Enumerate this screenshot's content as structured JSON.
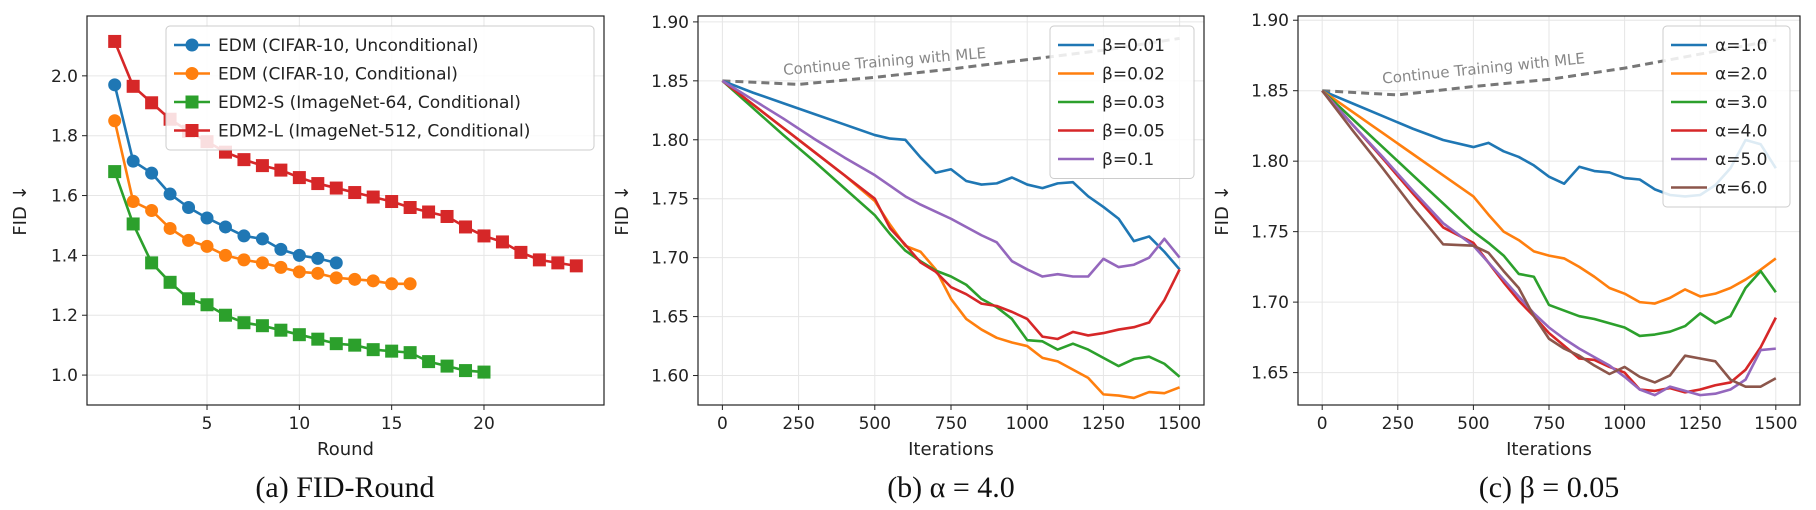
{
  "colors": {
    "blue": "#1f77b4",
    "orange": "#ff7f0e",
    "green": "#2ca02c",
    "red": "#d62728",
    "purple": "#9467bd",
    "brown": "#8c564b",
    "gray": "#777777"
  },
  "chart_data": [
    {
      "type": "line",
      "caption": "(a) FID-Round",
      "xlabel": "Round",
      "ylabel": "FID ↓",
      "xlim": [
        -1.5,
        26.5
      ],
      "ylim": [
        0.9,
        2.2
      ],
      "xticks": [
        5,
        10,
        15,
        20
      ],
      "yticks": [
        1.0,
        1.2,
        1.4,
        1.6,
        1.8,
        2.0
      ],
      "grid": true,
      "legend_position": "top-right",
      "series": [
        {
          "name": "EDM (CIFAR-10, Unconditional)",
          "color": "blue",
          "marker": "circle",
          "x": [
            0,
            1,
            2,
            3,
            4,
            5,
            6,
            7,
            8,
            9,
            10,
            11,
            12
          ],
          "y": [
            1.97,
            1.715,
            1.675,
            1.605,
            1.56,
            1.525,
            1.495,
            1.465,
            1.455,
            1.42,
            1.4,
            1.39,
            1.375
          ]
        },
        {
          "name": "EDM (CIFAR-10, Conditional)",
          "color": "orange",
          "marker": "circle",
          "x": [
            0,
            1,
            2,
            3,
            4,
            5,
            6,
            7,
            8,
            9,
            10,
            11,
            12,
            13,
            14,
            15,
            16
          ],
          "y": [
            1.85,
            1.58,
            1.55,
            1.49,
            1.45,
            1.43,
            1.4,
            1.385,
            1.375,
            1.36,
            1.345,
            1.34,
            1.325,
            1.32,
            1.315,
            1.305,
            1.305
          ]
        },
        {
          "name": "EDM2-S (ImageNet-64, Conditional)",
          "color": "green",
          "marker": "square",
          "x": [
            0,
            1,
            2,
            3,
            4,
            5,
            6,
            7,
            8,
            9,
            10,
            11,
            12,
            13,
            14,
            15,
            16,
            17,
            18,
            19,
            20
          ],
          "y": [
            1.68,
            1.505,
            1.375,
            1.31,
            1.255,
            1.235,
            1.2,
            1.175,
            1.165,
            1.15,
            1.135,
            1.12,
            1.105,
            1.1,
            1.085,
            1.08,
            1.075,
            1.045,
            1.03,
            1.015,
            1.01
          ]
        },
        {
          "name": "EDM2-L (ImageNet-512, Conditional)",
          "color": "red",
          "marker": "square",
          "x": [
            0,
            1,
            2,
            3,
            4,
            5,
            6,
            7,
            8,
            9,
            10,
            11,
            12,
            13,
            14,
            15,
            16,
            17,
            18,
            19,
            20,
            21,
            22,
            23,
            24,
            25
          ],
          "y": [
            2.115,
            1.965,
            1.91,
            1.855,
            1.815,
            1.78,
            1.745,
            1.72,
            1.7,
            1.685,
            1.66,
            1.64,
            1.625,
            1.61,
            1.595,
            1.58,
            1.56,
            1.545,
            1.53,
            1.495,
            1.465,
            1.445,
            1.41,
            1.385,
            1.375,
            1.365
          ]
        }
      ]
    },
    {
      "type": "line",
      "caption": "(b) α = 4.0",
      "xlabel": "Iterations",
      "ylabel": "FID ↓",
      "xlim": [
        -80,
        1580
      ],
      "ylim": [
        1.575,
        1.905
      ],
      "xticks": [
        0,
        250,
        500,
        750,
        1000,
        1250,
        1500
      ],
      "yticks": [
        1.6,
        1.65,
        1.7,
        1.75,
        1.8,
        1.85,
        1.9
      ],
      "grid": true,
      "legend_position": "top-right",
      "annotation": {
        "text": "Continue Training with MLE",
        "x": [
          0,
          250,
          500,
          750,
          1000,
          1250,
          1500
        ],
        "y": [
          1.85,
          1.847,
          1.853,
          1.86,
          1.868,
          1.876,
          1.886
        ]
      },
      "series": [
        {
          "name": "β=0.01",
          "color": "blue",
          "x": [
            0,
            100,
            200,
            300,
            400,
            500,
            550,
            600,
            650,
            700,
            750,
            800,
            850,
            900,
            950,
            1000,
            1050,
            1100,
            1150,
            1200,
            1250,
            1300,
            1350,
            1400,
            1450,
            1500
          ],
          "y": [
            1.85,
            1.84,
            1.831,
            1.822,
            1.813,
            1.804,
            1.801,
            1.8,
            1.785,
            1.772,
            1.775,
            1.765,
            1.762,
            1.763,
            1.768,
            1.762,
            1.759,
            1.763,
            1.764,
            1.752,
            1.743,
            1.733,
            1.714,
            1.718,
            1.705,
            1.69
          ]
        },
        {
          "name": "β=0.02",
          "color": "orange",
          "x": [
            0,
            100,
            200,
            300,
            400,
            500,
            550,
            600,
            650,
            700,
            750,
            800,
            850,
            900,
            950,
            1000,
            1050,
            1100,
            1150,
            1200,
            1250,
            1300,
            1350,
            1400,
            1450,
            1500
          ],
          "y": [
            1.85,
            1.83,
            1.81,
            1.79,
            1.77,
            1.748,
            1.728,
            1.71,
            1.705,
            1.69,
            1.665,
            1.648,
            1.639,
            1.632,
            1.628,
            1.625,
            1.615,
            1.612,
            1.605,
            1.598,
            1.584,
            1.583,
            1.581,
            1.586,
            1.585,
            1.59
          ]
        },
        {
          "name": "β=0.03",
          "color": "green",
          "x": [
            0,
            100,
            200,
            300,
            400,
            500,
            550,
            600,
            650,
            700,
            750,
            800,
            850,
            900,
            950,
            1000,
            1050,
            1100,
            1150,
            1200,
            1250,
            1300,
            1350,
            1400,
            1450,
            1500
          ],
          "y": [
            1.85,
            1.827,
            1.804,
            1.782,
            1.759,
            1.736,
            1.72,
            1.706,
            1.697,
            1.689,
            1.684,
            1.677,
            1.665,
            1.658,
            1.648,
            1.63,
            1.629,
            1.622,
            1.627,
            1.622,
            1.615,
            1.608,
            1.614,
            1.616,
            1.61,
            1.599
          ]
        },
        {
          "name": "β=0.05",
          "color": "red",
          "x": [
            0,
            100,
            200,
            300,
            400,
            500,
            550,
            600,
            650,
            700,
            750,
            800,
            850,
            900,
            950,
            1000,
            1050,
            1100,
            1150,
            1200,
            1250,
            1300,
            1350,
            1400,
            1450,
            1500
          ],
          "y": [
            1.85,
            1.83,
            1.81,
            1.79,
            1.77,
            1.75,
            1.725,
            1.711,
            1.696,
            1.688,
            1.675,
            1.669,
            1.661,
            1.659,
            1.654,
            1.648,
            1.633,
            1.631,
            1.637,
            1.634,
            1.636,
            1.639,
            1.641,
            1.645,
            1.664,
            1.69
          ]
        },
        {
          "name": "β=0.1",
          "color": "purple",
          "x": [
            0,
            100,
            200,
            300,
            400,
            500,
            550,
            600,
            650,
            700,
            750,
            800,
            850,
            900,
            950,
            1000,
            1050,
            1100,
            1150,
            1200,
            1250,
            1300,
            1350,
            1400,
            1450,
            1500
          ],
          "y": [
            1.85,
            1.834,
            1.818,
            1.801,
            1.785,
            1.77,
            1.761,
            1.752,
            1.745,
            1.739,
            1.733,
            1.726,
            1.719,
            1.713,
            1.697,
            1.69,
            1.684,
            1.686,
            1.684,
            1.684,
            1.699,
            1.692,
            1.694,
            1.7,
            1.716,
            1.7
          ]
        }
      ]
    },
    {
      "type": "line",
      "caption": "(c) β = 0.05",
      "xlabel": "Iterations",
      "ylabel": "FID ↓",
      "xlim": [
        -80,
        1580
      ],
      "ylim": [
        1.627,
        1.903
      ],
      "xticks": [
        0,
        250,
        500,
        750,
        1000,
        1250,
        1500
      ],
      "yticks": [
        1.65,
        1.7,
        1.75,
        1.8,
        1.85,
        1.9
      ],
      "grid": true,
      "legend_position": "top-right",
      "annotation": {
        "text": "Continue Training with MLE",
        "x": [
          0,
          250,
          500,
          750,
          1000,
          1250,
          1500
        ],
        "y": [
          1.85,
          1.847,
          1.853,
          1.858,
          1.866,
          1.876,
          1.886
        ]
      },
      "series": [
        {
          "name": "α=1.0",
          "color": "blue",
          "x": [
            0,
            100,
            200,
            300,
            400,
            500,
            550,
            600,
            650,
            700,
            750,
            800,
            850,
            900,
            950,
            1000,
            1050,
            1100,
            1150,
            1200,
            1250,
            1300,
            1350,
            1400,
            1450,
            1500
          ],
          "y": [
            1.85,
            1.841,
            1.832,
            1.823,
            1.815,
            1.81,
            1.813,
            1.807,
            1.803,
            1.797,
            1.789,
            1.784,
            1.796,
            1.793,
            1.792,
            1.788,
            1.787,
            1.78,
            1.776,
            1.775,
            1.776,
            1.783,
            1.795,
            1.815,
            1.812,
            1.795
          ]
        },
        {
          "name": "α=2.0",
          "color": "orange",
          "x": [
            0,
            100,
            200,
            300,
            400,
            500,
            550,
            600,
            650,
            700,
            750,
            800,
            850,
            900,
            950,
            1000,
            1050,
            1100,
            1150,
            1200,
            1250,
            1300,
            1350,
            1400,
            1450,
            1500
          ],
          "y": [
            1.85,
            1.835,
            1.82,
            1.805,
            1.79,
            1.775,
            1.762,
            1.75,
            1.744,
            1.736,
            1.733,
            1.731,
            1.725,
            1.718,
            1.71,
            1.706,
            1.7,
            1.699,
            1.703,
            1.709,
            1.704,
            1.706,
            1.71,
            1.716,
            1.723,
            1.731
          ]
        },
        {
          "name": "α=3.0",
          "color": "green",
          "x": [
            0,
            100,
            200,
            300,
            400,
            500,
            550,
            600,
            650,
            700,
            750,
            800,
            850,
            900,
            950,
            1000,
            1050,
            1100,
            1150,
            1200,
            1250,
            1300,
            1350,
            1400,
            1450,
            1500
          ],
          "y": [
            1.85,
            1.83,
            1.81,
            1.79,
            1.77,
            1.75,
            1.742,
            1.733,
            1.72,
            1.718,
            1.698,
            1.694,
            1.69,
            1.688,
            1.685,
            1.682,
            1.676,
            1.677,
            1.679,
            1.683,
            1.692,
            1.685,
            1.69,
            1.71,
            1.722,
            1.707
          ]
        },
        {
          "name": "α=4.0",
          "color": "red",
          "x": [
            0,
            100,
            200,
            300,
            400,
            500,
            550,
            600,
            650,
            700,
            750,
            800,
            850,
            900,
            950,
            1000,
            1050,
            1100,
            1150,
            1200,
            1250,
            1300,
            1350,
            1400,
            1450,
            1500
          ],
          "y": [
            1.85,
            1.826,
            1.802,
            1.777,
            1.753,
            1.742,
            1.728,
            1.714,
            1.701,
            1.69,
            1.678,
            1.669,
            1.66,
            1.659,
            1.654,
            1.65,
            1.638,
            1.637,
            1.639,
            1.636,
            1.638,
            1.641,
            1.643,
            1.652,
            1.668,
            1.689
          ]
        },
        {
          "name": "α=5.0",
          "color": "purple",
          "x": [
            0,
            100,
            200,
            300,
            400,
            500,
            550,
            600,
            650,
            700,
            750,
            800,
            850,
            900,
            950,
            1000,
            1050,
            1100,
            1150,
            1200,
            1250,
            1300,
            1350,
            1400,
            1450,
            1500
          ],
          "y": [
            1.85,
            1.826,
            1.803,
            1.779,
            1.756,
            1.74,
            1.728,
            1.716,
            1.704,
            1.692,
            1.682,
            1.674,
            1.667,
            1.661,
            1.655,
            1.647,
            1.638,
            1.634,
            1.64,
            1.637,
            1.634,
            1.635,
            1.638,
            1.645,
            1.666,
            1.667
          ]
        },
        {
          "name": "α=6.0",
          "color": "brown",
          "x": [
            0,
            100,
            200,
            300,
            400,
            500,
            550,
            600,
            650,
            700,
            750,
            800,
            850,
            900,
            950,
            1000,
            1050,
            1100,
            1150,
            1200,
            1250,
            1300,
            1350,
            1400,
            1450,
            1500
          ],
          "y": [
            1.85,
            1.822,
            1.795,
            1.767,
            1.741,
            1.74,
            1.735,
            1.722,
            1.71,
            1.69,
            1.674,
            1.667,
            1.662,
            1.655,
            1.649,
            1.654,
            1.647,
            1.643,
            1.648,
            1.662,
            1.66,
            1.658,
            1.645,
            1.64,
            1.64,
            1.646
          ]
        }
      ]
    }
  ]
}
